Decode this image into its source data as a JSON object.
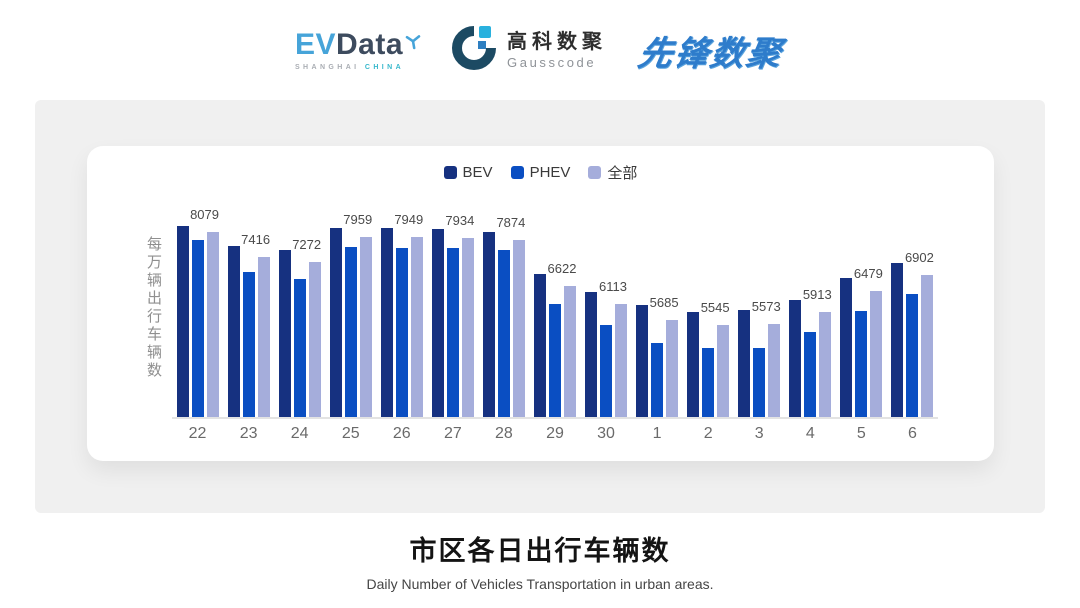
{
  "header": {
    "evdata": {
      "ev": "EV",
      "data": "Data",
      "sub_left": "SHANGHAI",
      "sub_right": "CHINA"
    },
    "gausscode": {
      "cn": "高科数聚",
      "en": "Gausscode"
    },
    "pioneer": {
      "text": "先锋数聚"
    }
  },
  "chart_data": {
    "type": "bar",
    "title": "市区各日出行车辆数",
    "subtitle": "Daily Number of Vehicles Transportation in urban areas.",
    "ylabel": "每万辆出行车辆数",
    "xlabel": "",
    "legend_position": "top",
    "grid": false,
    "ylim": [
      3000,
      8500
    ],
    "categories": [
      "22",
      "23",
      "24",
      "25",
      "26",
      "27",
      "28",
      "29",
      "30",
      "1",
      "2",
      "3",
      "4",
      "5",
      "6"
    ],
    "series": [
      {
        "name": "BEV",
        "key": "bev",
        "color": "#163180",
        "values": [
          8243,
          7698,
          7589,
          8200,
          8190,
          8180,
          8080,
          6935,
          6445,
          6090,
          5900,
          5954,
          6227,
          6826,
          7235
        ]
      },
      {
        "name": "PHEV",
        "key": "phev",
        "color": "#0a4ec2",
        "values": [
          7862,
          6990,
          6799,
          7680,
          7650,
          7650,
          7590,
          6118,
          5546,
          5055,
          4919,
          4919,
          5355,
          5927,
          6390
        ]
      },
      {
        "name": "全部",
        "key": "all",
        "color": "#a5addb",
        "values": [
          8079,
          7416,
          7272,
          7959,
          7949,
          7934,
          7874,
          6622,
          6113,
          5685,
          5545,
          5573,
          5913,
          6479,
          6902
        ]
      }
    ],
    "data_labels": [
      "8079",
      "7416",
      "7272",
      "7959",
      "7949",
      "7934",
      "7874",
      "6622",
      "6113",
      "5685",
      "5545",
      "5573",
      "5913",
      "6479",
      "6902"
    ],
    "label_color": "#4a4a4a",
    "axis_line_color": "#e3e3e3",
    "tick_color": "#6a6a6a"
  },
  "colors": {
    "page_bg": "#ffffff",
    "panel_bg": "#f0f0f0",
    "card_bg": "#ffffff"
  }
}
